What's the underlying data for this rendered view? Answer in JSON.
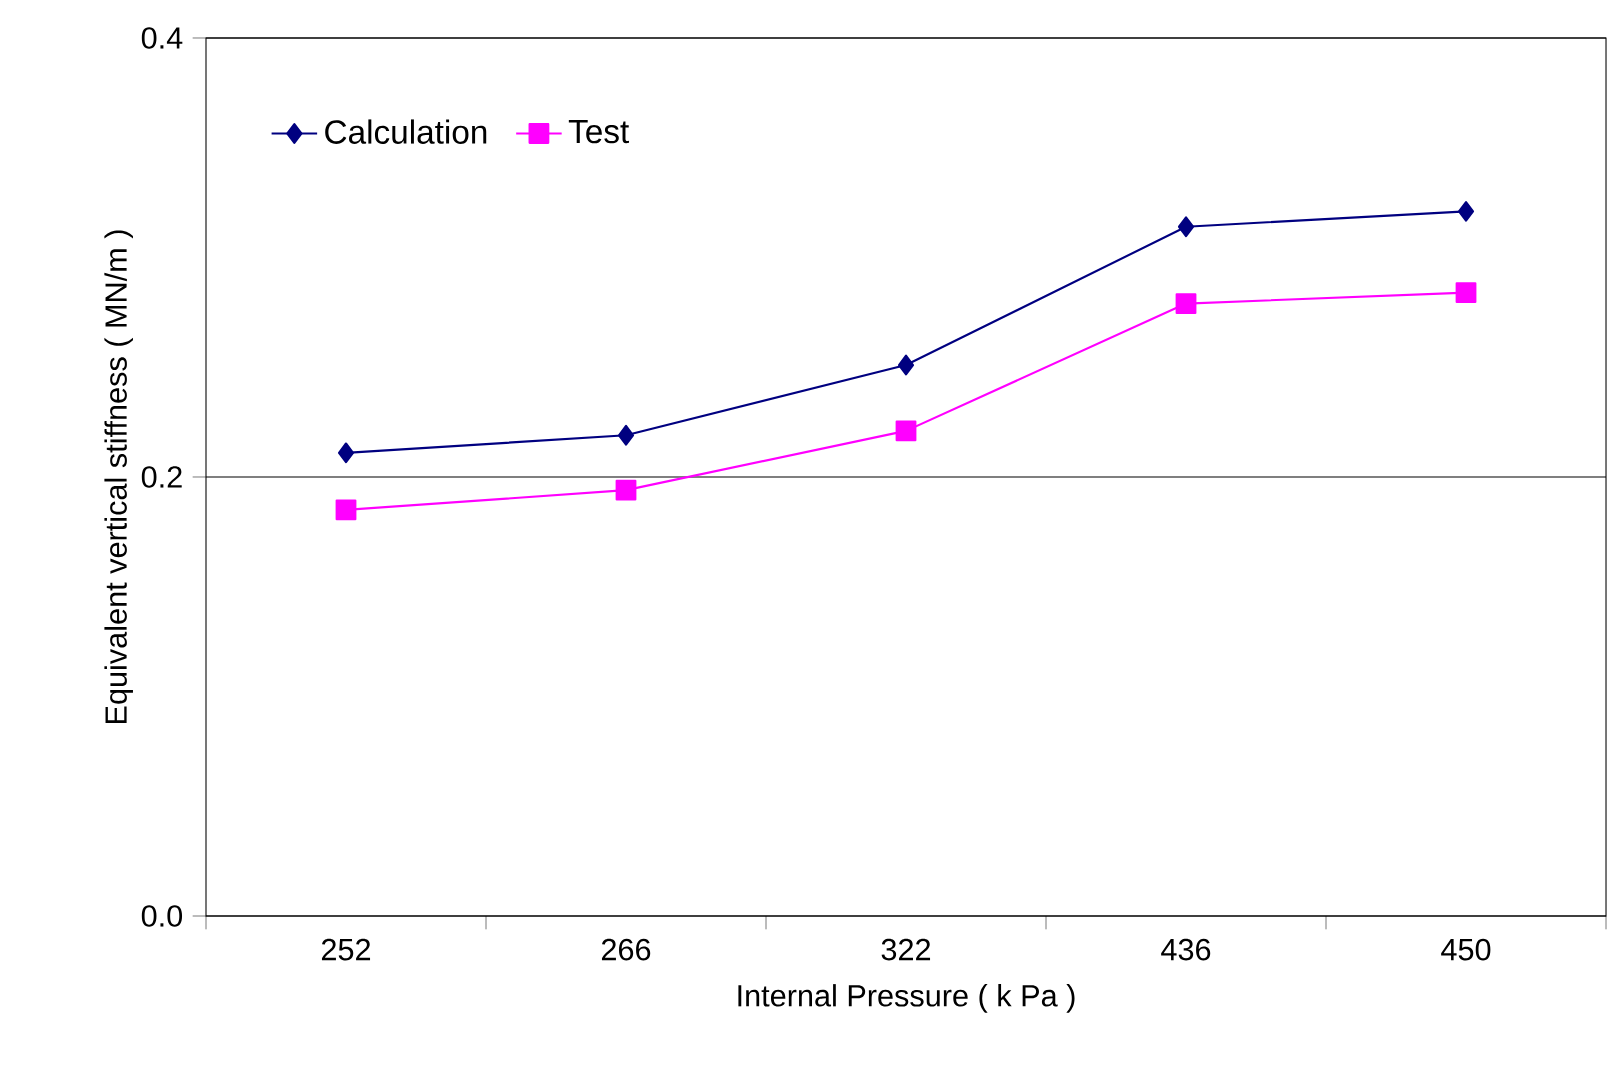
{
  "chart_data": {
    "type": "line",
    "xlabel": "Internal Pressure ( k Pa )",
    "ylabel": "Equivalent vertical stiffness ( MN/m )",
    "categories": [
      "252",
      "266",
      "322",
      "436",
      "450"
    ],
    "series": [
      {
        "name": "Calculation",
        "color": "#000080",
        "marker": "diamond",
        "values": [
          0.211,
          0.219,
          0.251,
          0.314,
          0.321
        ]
      },
      {
        "name": "Test",
        "color": "#ff00ff",
        "marker": "square",
        "values": [
          0.185,
          0.194,
          0.221,
          0.279,
          0.284
        ]
      }
    ],
    "ylim": [
      0,
      0.4
    ],
    "yticks": [
      {
        "value": 0,
        "label": "0.0"
      },
      0.2,
      0.4
    ],
    "grid": "y",
    "legend": "top left",
    "line_style": "solid"
  }
}
